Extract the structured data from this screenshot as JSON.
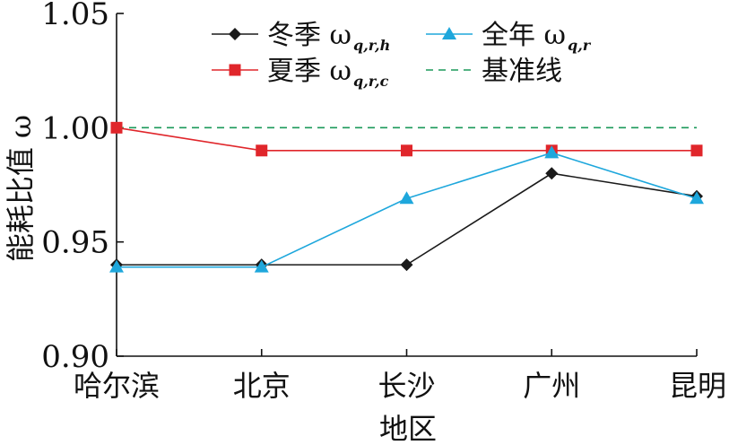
{
  "chart_data": {
    "type": "line",
    "title": "",
    "xlabel": "地区",
    "ylabel": "能耗比值 ω",
    "ylim": [
      0.9,
      1.05
    ],
    "yticks": [
      "0.90",
      "0.95",
      "1.00",
      "1.05"
    ],
    "categories": [
      "哈尔滨",
      "北京",
      "长沙",
      "广州",
      "昆明"
    ],
    "grid": false,
    "legend_position": "top",
    "series": [
      {
        "key": "winter",
        "name": "冬季 ω q,r,h",
        "label_prefix": "冬季 ω",
        "label_sub": "q,r,h",
        "values": [
          0.94,
          0.94,
          0.94,
          0.98,
          0.97
        ],
        "color": "#1a1a1a",
        "marker": "diamond",
        "dash": "solid"
      },
      {
        "key": "annual",
        "name": "全年 ω q,r",
        "label_prefix": "全年 ω",
        "label_sub": "q,r",
        "values": [
          0.939,
          0.939,
          0.969,
          0.989,
          0.969
        ],
        "color": "#1ea7dc",
        "marker": "triangle",
        "dash": "solid"
      },
      {
        "key": "summer",
        "name": "夏季 ω q,r,c",
        "label_prefix": "夏季 ω",
        "label_sub": "q,r,c",
        "values": [
          1.0,
          0.99,
          0.99,
          0.99,
          0.99
        ],
        "color": "#e0262b",
        "marker": "square",
        "dash": "solid"
      },
      {
        "key": "baseline",
        "name": "基准线",
        "label_prefix": "基准线",
        "label_sub": "",
        "values": [
          1.0,
          1.0,
          1.0,
          1.0,
          1.0
        ],
        "color": "#1b9a5a",
        "marker": "none",
        "dash": "dashed"
      }
    ]
  }
}
